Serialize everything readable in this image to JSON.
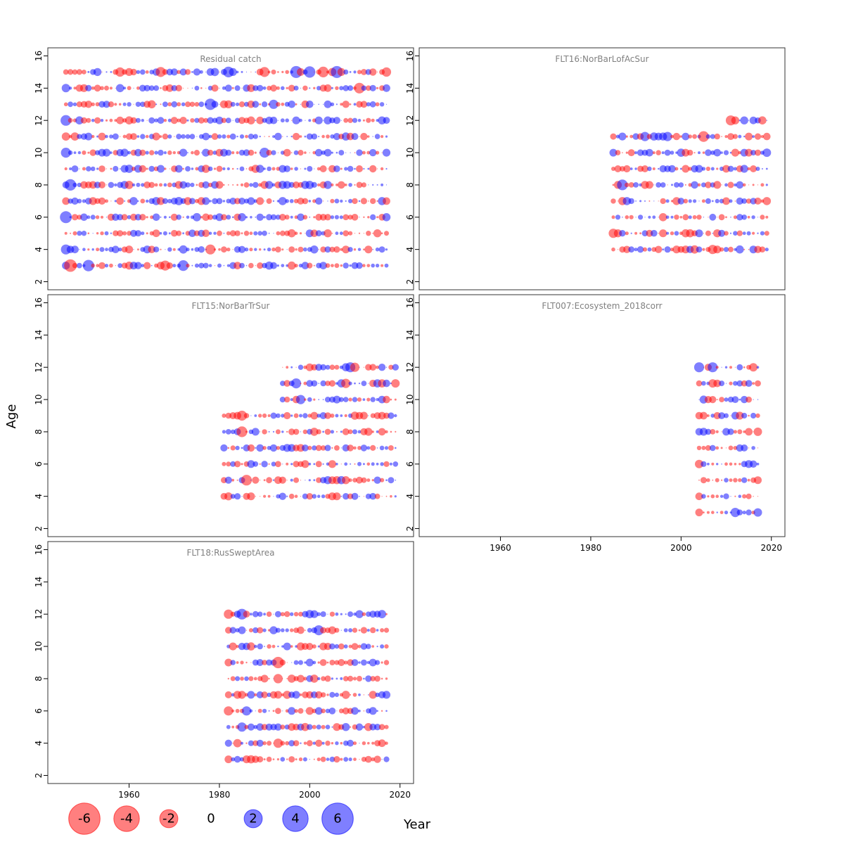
{
  "chart_data": {
    "type": "scatter",
    "subtype": "bubble",
    "xlabel": "Year",
    "ylabel": "Age",
    "xlim": [
      1942,
      2023
    ],
    "ylim": [
      1.5,
      16.5
    ],
    "x_ticks": [
      1960,
      1980,
      2000,
      2020
    ],
    "y_ticks": [
      2,
      4,
      6,
      8,
      10,
      12,
      14,
      16
    ],
    "colors": {
      "negative": "#ff0000",
      "positive": "#0000ff",
      "opacity": 0.5
    },
    "legend": {
      "position": "bottom-left",
      "values": [
        -6,
        -4,
        -2,
        0,
        2,
        4,
        6
      ],
      "labels": [
        "-6",
        "-4",
        "-2",
        "0",
        "2",
        "4",
        "6"
      ]
    },
    "panels": [
      {
        "title": "Residual catch",
        "ages": [
          3,
          4,
          5,
          6,
          7,
          8,
          9,
          10,
          11,
          12,
          13,
          14,
          15
        ],
        "years": [
          1946,
          2017
        ],
        "highlights": [
          {
            "year": 1947,
            "age": 3,
            "value": -5.5
          },
          {
            "year": 1951,
            "age": 3,
            "value": 4.5
          },
          {
            "year": 1946,
            "age": 4,
            "value": 3.5
          },
          {
            "year": 1946,
            "age": 6,
            "value": 5
          },
          {
            "year": 1947,
            "age": 8,
            "value": 4.5
          },
          {
            "year": 1946,
            "age": 10,
            "value": 3.5
          },
          {
            "year": 1946,
            "age": 12,
            "value": 4
          },
          {
            "year": 1946,
            "age": 14,
            "value": 2.5
          },
          {
            "year": 1968,
            "age": 3,
            "value": -3.5
          },
          {
            "year": 1972,
            "age": 3,
            "value": 4
          },
          {
            "year": 1978,
            "age": 4,
            "value": -3.5
          },
          {
            "year": 1978,
            "age": 13,
            "value": 4.5
          },
          {
            "year": 1982,
            "age": 15,
            "value": 4
          },
          {
            "year": 1990,
            "age": 10,
            "value": 3.5
          },
          {
            "year": 1990,
            "age": 15,
            "value": -3.5
          },
          {
            "year": 1992,
            "age": 13,
            "value": 3
          },
          {
            "year": 1997,
            "age": 15,
            "value": 5
          },
          {
            "year": 2000,
            "age": 15,
            "value": 4.5
          },
          {
            "year": 2003,
            "age": 15,
            "value": -4
          },
          {
            "year": 2006,
            "age": 15,
            "value": 5
          },
          {
            "year": 2011,
            "age": 14,
            "value": -4
          },
          {
            "year": 2017,
            "age": 15,
            "value": -3
          },
          {
            "year": 1958,
            "age": 15,
            "value": -3
          },
          {
            "year": 1967,
            "age": 15,
            "value": -3.5
          }
        ]
      },
      {
        "title": "FLT16:NorBarLofAcSur",
        "ages": [
          4,
          5,
          6,
          7,
          8,
          9,
          10,
          11,
          12
        ],
        "years": [
          1985,
          2019
        ],
        "age_year_start": {
          "11": 1985,
          "12": 2011
        },
        "highlights": [
          {
            "year": 2005,
            "age": 11,
            "value": -4
          },
          {
            "year": 2011,
            "age": 12,
            "value": -3.5
          },
          {
            "year": 1987,
            "age": 8,
            "value": 4
          },
          {
            "year": 1985,
            "age": 5,
            "value": -3
          },
          {
            "year": 1992,
            "age": 11,
            "value": 3
          },
          {
            "year": 1997,
            "age": 11,
            "value": 3
          },
          {
            "year": 2007,
            "age": 4,
            "value": -3
          },
          {
            "year": 2019,
            "age": 10,
            "value": 2.5
          }
        ]
      },
      {
        "title": "FLT15:NorBarTrSur",
        "ages": [
          4,
          5,
          6,
          7,
          8,
          9,
          10,
          11,
          12
        ],
        "years": [
          1981,
          2019
        ],
        "age_year_start": {
          "10": 1994,
          "11": 1994,
          "12": 1994
        },
        "highlights": [
          {
            "year": 1986,
            "age": 5,
            "value": -4
          },
          {
            "year": 1985,
            "age": 8,
            "value": -4
          },
          {
            "year": 1985,
            "age": 9,
            "value": -3.5
          },
          {
            "year": 1997,
            "age": 11,
            "value": 3.5
          },
          {
            "year": 1998,
            "age": 10,
            "value": 3
          },
          {
            "year": 2008,
            "age": 11,
            "value": -3
          },
          {
            "year": 2009,
            "age": 12,
            "value": 3.5
          },
          {
            "year": 2010,
            "age": 12,
            "value": -3
          },
          {
            "year": 2019,
            "age": 11,
            "value": -2.5
          }
        ]
      },
      {
        "title": "FLT007:Ecosystem_2018corr",
        "ages": [
          3,
          4,
          5,
          6,
          7,
          8,
          9,
          10,
          11,
          12
        ],
        "years": [
          2004,
          2017
        ],
        "highlights": [
          {
            "year": 2004,
            "age": 12,
            "value": 3.5
          },
          {
            "year": 2007,
            "age": 12,
            "value": 3.5
          },
          {
            "year": 2007,
            "age": 11,
            "value": -2.5
          },
          {
            "year": 2004,
            "age": 6,
            "value": -2.5
          },
          {
            "year": 2012,
            "age": 3,
            "value": 3
          },
          {
            "year": 2017,
            "age": 3,
            "value": 2.5
          },
          {
            "year": 2016,
            "age": 12,
            "value": -2.5
          },
          {
            "year": 2017,
            "age": 8,
            "value": -2.5
          }
        ]
      },
      {
        "title": "FLT18:RusSweptArea",
        "ages": [
          3,
          4,
          5,
          6,
          7,
          8,
          9,
          10,
          11,
          12
        ],
        "years": [
          1982,
          2017
        ],
        "highlights": [
          {
            "year": 1985,
            "age": 12,
            "value": 4
          },
          {
            "year": 1982,
            "age": 12,
            "value": -3
          },
          {
            "year": 1993,
            "age": 9,
            "value": -4.5
          },
          {
            "year": 1993,
            "age": 8,
            "value": -3
          },
          {
            "year": 2002,
            "age": 11,
            "value": 3.5
          },
          {
            "year": 1985,
            "age": 5,
            "value": 3
          },
          {
            "year": 1982,
            "age": 6,
            "value": -3
          },
          {
            "year": 1986,
            "age": 6,
            "value": 3
          },
          {
            "year": 1993,
            "age": 4,
            "value": -3
          }
        ]
      }
    ]
  }
}
